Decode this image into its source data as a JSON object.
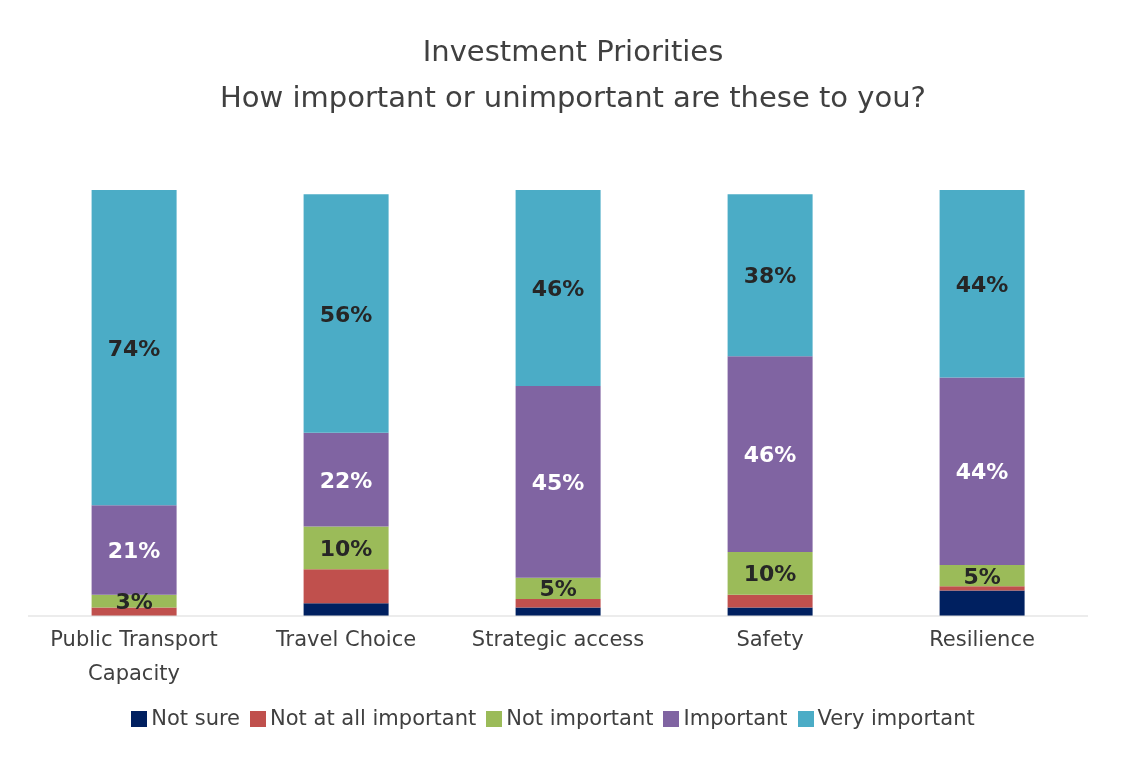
{
  "chart_data": {
    "type": "bar",
    "title": "Investment Priorities",
    "subtitle": "How important or unimportant are these to you?",
    "categories": [
      "Public Transport Capacity",
      "Travel Choice",
      "Strategic access",
      "Safety",
      "Resilience"
    ],
    "stacked": true,
    "ylim": [
      0,
      100
    ],
    "tick_labels": "x",
    "legend": "bottom",
    "series": [
      {
        "name": "Not sure",
        "color": "#002060",
        "values": [
          0,
          3,
          2,
          2,
          6
        ],
        "value_labels": [
          null,
          null,
          null,
          null,
          null
        ]
      },
      {
        "name": "Not at all important",
        "color": "#c0504d",
        "values": [
          2,
          8,
          2,
          3,
          1
        ],
        "value_labels": [
          null,
          null,
          null,
          null,
          null
        ]
      },
      {
        "name": "Not important",
        "color": "#9bbb59",
        "values": [
          3,
          10,
          5,
          10,
          5
        ],
        "value_labels": [
          "3%",
          "10%",
          "5%",
          "10%",
          "5%"
        ]
      },
      {
        "name": "Important",
        "color": "#8064a2",
        "values": [
          21,
          22,
          45,
          46,
          44
        ],
        "value_labels": [
          "21%",
          "22%",
          "45%",
          "46%",
          "44%"
        ]
      },
      {
        "name": "Very important",
        "color": "#4bacc6",
        "values": [
          74,
          56,
          46,
          38,
          44
        ],
        "value_labels": [
          "74%",
          "56%",
          "46%",
          "38%",
          "44%"
        ]
      }
    ]
  }
}
